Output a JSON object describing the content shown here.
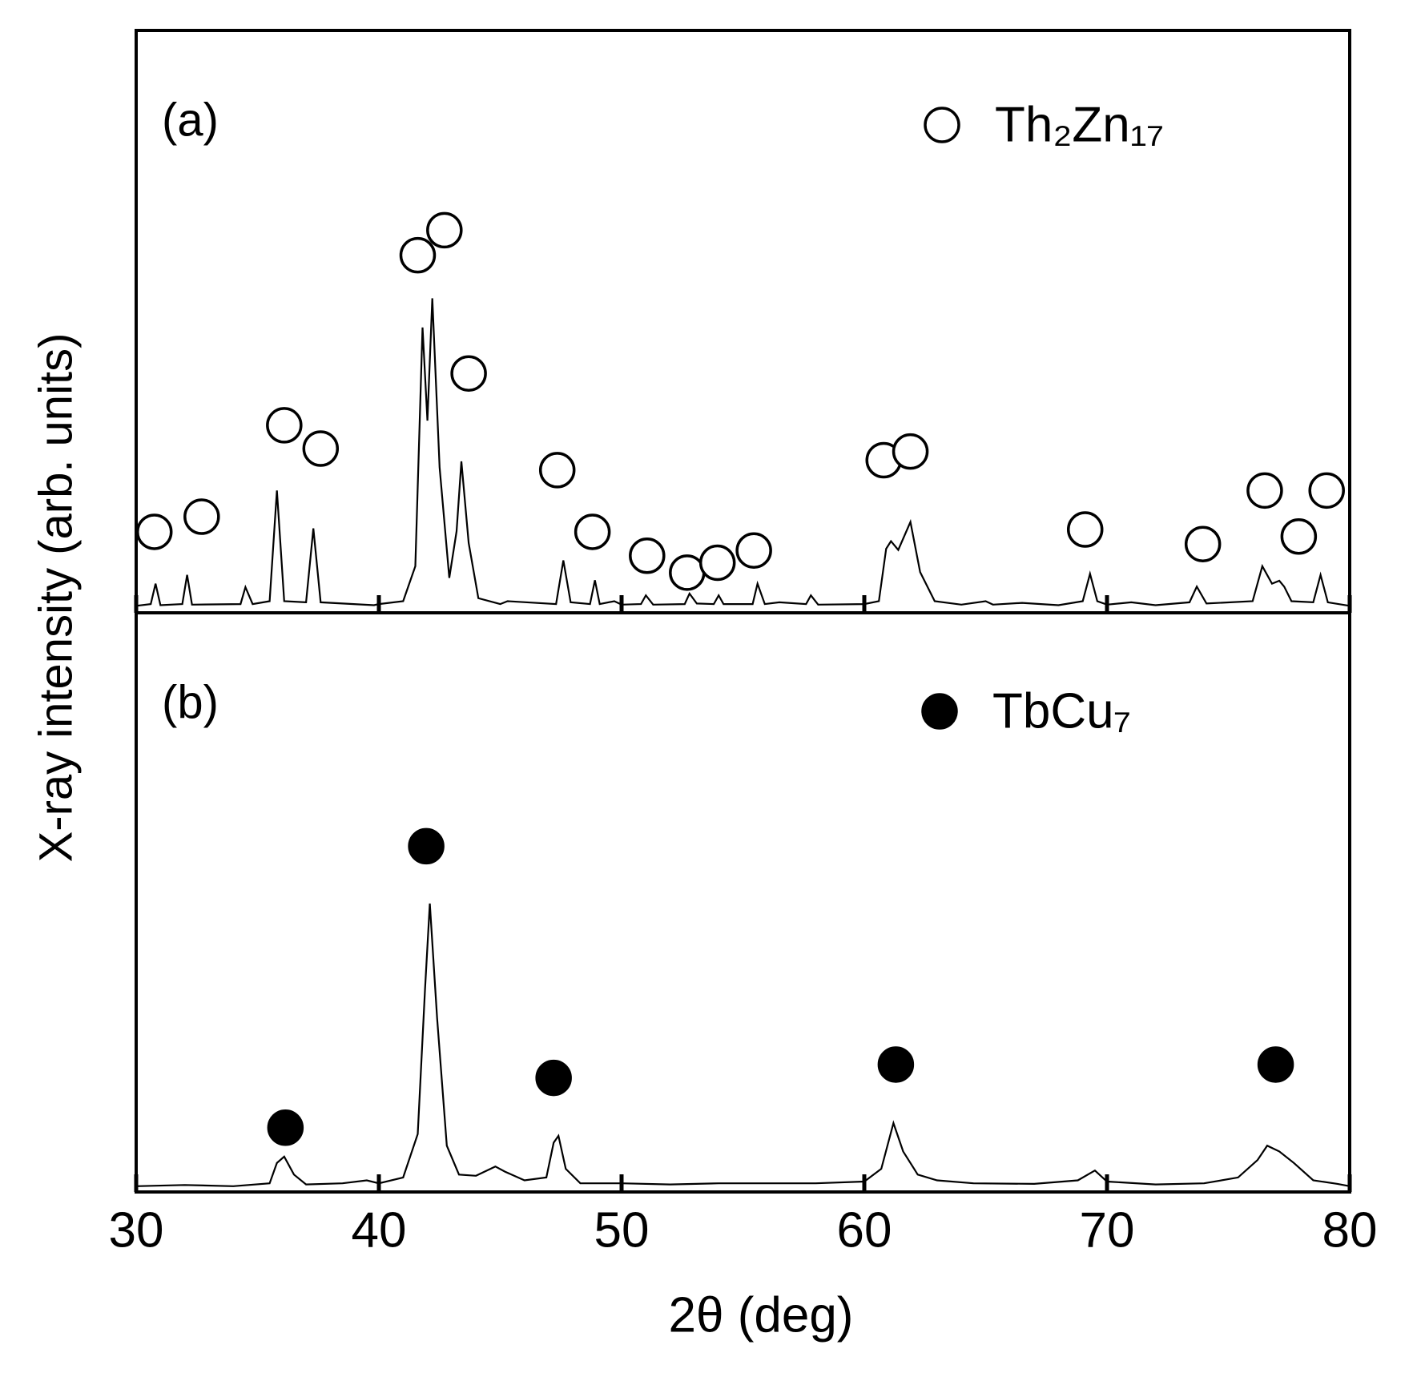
{
  "xlabel": "2θ (deg)",
  "ylabel": "X-ray intensity (arb. units)",
  "chart_data": [
    {
      "type": "line",
      "title": "(a)",
      "xlim": [
        30,
        80
      ],
      "xticks": [
        30,
        40,
        50,
        60,
        70,
        80
      ],
      "ylim": [
        0,
        100
      ],
      "color": "#000000",
      "x": [
        30,
        30.6,
        30.8,
        31.0,
        31.9,
        32.1,
        32.3,
        34.3,
        34.5,
        34.8,
        35.5,
        35.8,
        36.1,
        37.0,
        37.3,
        37.6,
        39.8,
        40,
        41.0,
        41.5,
        41.8,
        42.0,
        42.2,
        42.5,
        42.9,
        43.2,
        43.4,
        43.7,
        44.1,
        45,
        45.3,
        47.3,
        47.6,
        47.9,
        48.7,
        48.9,
        49.1,
        49.7,
        50,
        50.8,
        51.0,
        51.3,
        52.6,
        52.8,
        53.1,
        53.8,
        54,
        54.2,
        55.4,
        55.6,
        55.9,
        56.5,
        57.6,
        57.8,
        58.1,
        60,
        60.6,
        60.9,
        61.1,
        61.4,
        61.9,
        62.3,
        62.9,
        64,
        65,
        65.3,
        66.5,
        68,
        69.0,
        69.3,
        69.6,
        70,
        71,
        72,
        73.4,
        73.7,
        74.1,
        76.0,
        76.4,
        76.8,
        77.1,
        77.3,
        77.6,
        78.5,
        78.8,
        79.1,
        80
      ],
      "values": [
        1.2,
        1.5,
        5,
        1.3,
        1.5,
        6.5,
        1.4,
        1.5,
        4.4,
        1.5,
        2,
        21,
        2,
        1.8,
        14.5,
        1.8,
        1.3,
        1.5,
        2,
        8,
        49,
        33,
        54,
        25,
        6,
        14,
        26,
        12,
        2.5,
        1.5,
        2,
        1.5,
        9,
        1.8,
        1.5,
        5.6,
        1.5,
        2,
        1.4,
        1.5,
        3,
        1.4,
        1.5,
        3.3,
        1.6,
        1.5,
        3,
        1.5,
        1.5,
        5,
        1.5,
        1.8,
        1.5,
        3,
        1.4,
        1.5,
        2,
        11,
        12.3,
        10.8,
        15.6,
        7,
        2,
        1.4,
        2,
        1.4,
        1.7,
        1.3,
        2,
        6.7,
        2,
        1.4,
        1.8,
        1.3,
        1.8,
        4.5,
        1.6,
        2,
        8,
        5,
        5.5,
        4.5,
        2,
        1.8,
        6.5,
        1.8,
        1.2
      ],
      "series": [
        {
          "name": "Th₂Zn₁₇",
          "marker": "open",
          "x": [
            30.75,
            32.7,
            36.1,
            37.6,
            41.6,
            42.7,
            43.7,
            47.35,
            48.8,
            51.05,
            52.7,
            53.95,
            55.45,
            60.8,
            61.9,
            69.1,
            73.95,
            76.5,
            77.9,
            79.05
          ],
          "values": [
            13.9,
            16.5,
            32.2,
            28.2,
            61.4,
            65.7,
            41.1,
            24.5,
            13.9,
            9.8,
            6.9,
            8.6,
            10.7,
            26.2,
            27.7,
            14.3,
            11.8,
            21,
            13.1,
            21
          ]
        }
      ]
    },
    {
      "type": "line",
      "title": "(b)",
      "xlim": [
        30,
        80
      ],
      "xticks": [
        30,
        40,
        50,
        60,
        70,
        80
      ],
      "ylim": [
        0,
        100
      ],
      "color": "#000000",
      "x": [
        30,
        32,
        34,
        35.5,
        35.8,
        36.1,
        36.5,
        37,
        38.5,
        39.5,
        40,
        41,
        41.6,
        41.9,
        42.1,
        42.4,
        42.8,
        43.3,
        44,
        44.8,
        45.2,
        46,
        46.9,
        47.2,
        47.4,
        47.7,
        48.3,
        50,
        52,
        54,
        56,
        58,
        60,
        60.7,
        61.2,
        61.6,
        62.2,
        63,
        64.5,
        67,
        68.8,
        69.5,
        70,
        72,
        74,
        75.4,
        76.2,
        76.6,
        77.1,
        77.7,
        78.5,
        79.5,
        80
      ],
      "values": [
        1,
        1.2,
        1,
        1.5,
        5,
        6.1,
        3,
        1.3,
        1.5,
        2,
        1.5,
        2.5,
        10,
        35,
        49.8,
        30,
        8,
        3,
        2.8,
        4.4,
        3.5,
        2,
        2.5,
        8.5,
        9.7,
        4,
        1.5,
        1.5,
        1.3,
        1.5,
        1.5,
        1.5,
        1.8,
        4,
        11.9,
        7,
        3,
        2,
        1.5,
        1.4,
        2,
        3.7,
        1.8,
        1.3,
        1.5,
        2.5,
        5.5,
        8,
        7,
        5,
        2,
        1.4,
        1
      ],
      "series": [
        {
          "name": "TbCu₇",
          "marker": "filled",
          "x": [
            36.15,
            41.95,
            47.2,
            61.3,
            76.95
          ],
          "values": [
            11.1,
            59.7,
            19.7,
            22,
            22
          ]
        }
      ]
    }
  ]
}
